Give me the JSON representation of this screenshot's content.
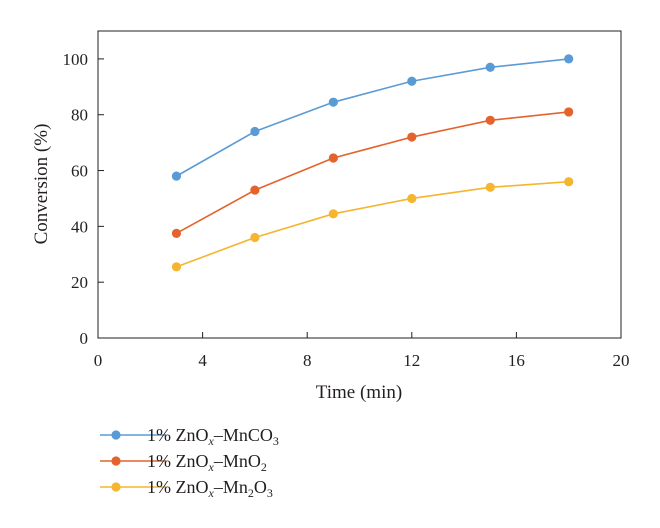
{
  "chart_data": {
    "type": "line",
    "xlabel": "Time (min)",
    "ylabel": "Conversion (%)",
    "xlim": [
      0,
      20
    ],
    "ylim": [
      0,
      110
    ],
    "xticks": [
      0,
      4,
      8,
      12,
      16,
      20
    ],
    "yticks": [
      0,
      20,
      40,
      60,
      80,
      100
    ],
    "grid": false,
    "legend_position": "bottom-left",
    "x": [
      3,
      6,
      9,
      12,
      15,
      18
    ],
    "series": [
      {
        "name": "1% ZnOx–MnCO3",
        "label_parts": [
          {
            "t": "1% ZnO",
            "s": "normal"
          },
          {
            "t": "x",
            "s": "sub-italic"
          },
          {
            "t": "–MnCO",
            "s": "normal"
          },
          {
            "t": "3",
            "s": "sub"
          }
        ],
        "color": "#5b9bd5",
        "values": [
          58,
          74,
          84.5,
          92,
          97,
          100
        ]
      },
      {
        "name": "1% ZnOx–MnO2",
        "label_parts": [
          {
            "t": "1% ZnO",
            "s": "normal"
          },
          {
            "t": "x",
            "s": "sub-italic"
          },
          {
            "t": "–MnO",
            "s": "normal"
          },
          {
            "t": "2",
            "s": "sub"
          }
        ],
        "color": "#e4632d",
        "values": [
          37.5,
          53,
          64.5,
          72,
          78,
          81
        ]
      },
      {
        "name": "1% ZnOx–Mn2O3",
        "label_parts": [
          {
            "t": "1% ZnO",
            "s": "normal"
          },
          {
            "t": "x",
            "s": "sub-italic"
          },
          {
            "t": "–Mn",
            "s": "normal"
          },
          {
            "t": "2",
            "s": "sub"
          },
          {
            "t": "O",
            "s": "normal"
          },
          {
            "t": "3",
            "s": "sub"
          }
        ],
        "color": "#f5b52e",
        "values": [
          25.5,
          36,
          44.5,
          50,
          54,
          56
        ]
      }
    ]
  }
}
